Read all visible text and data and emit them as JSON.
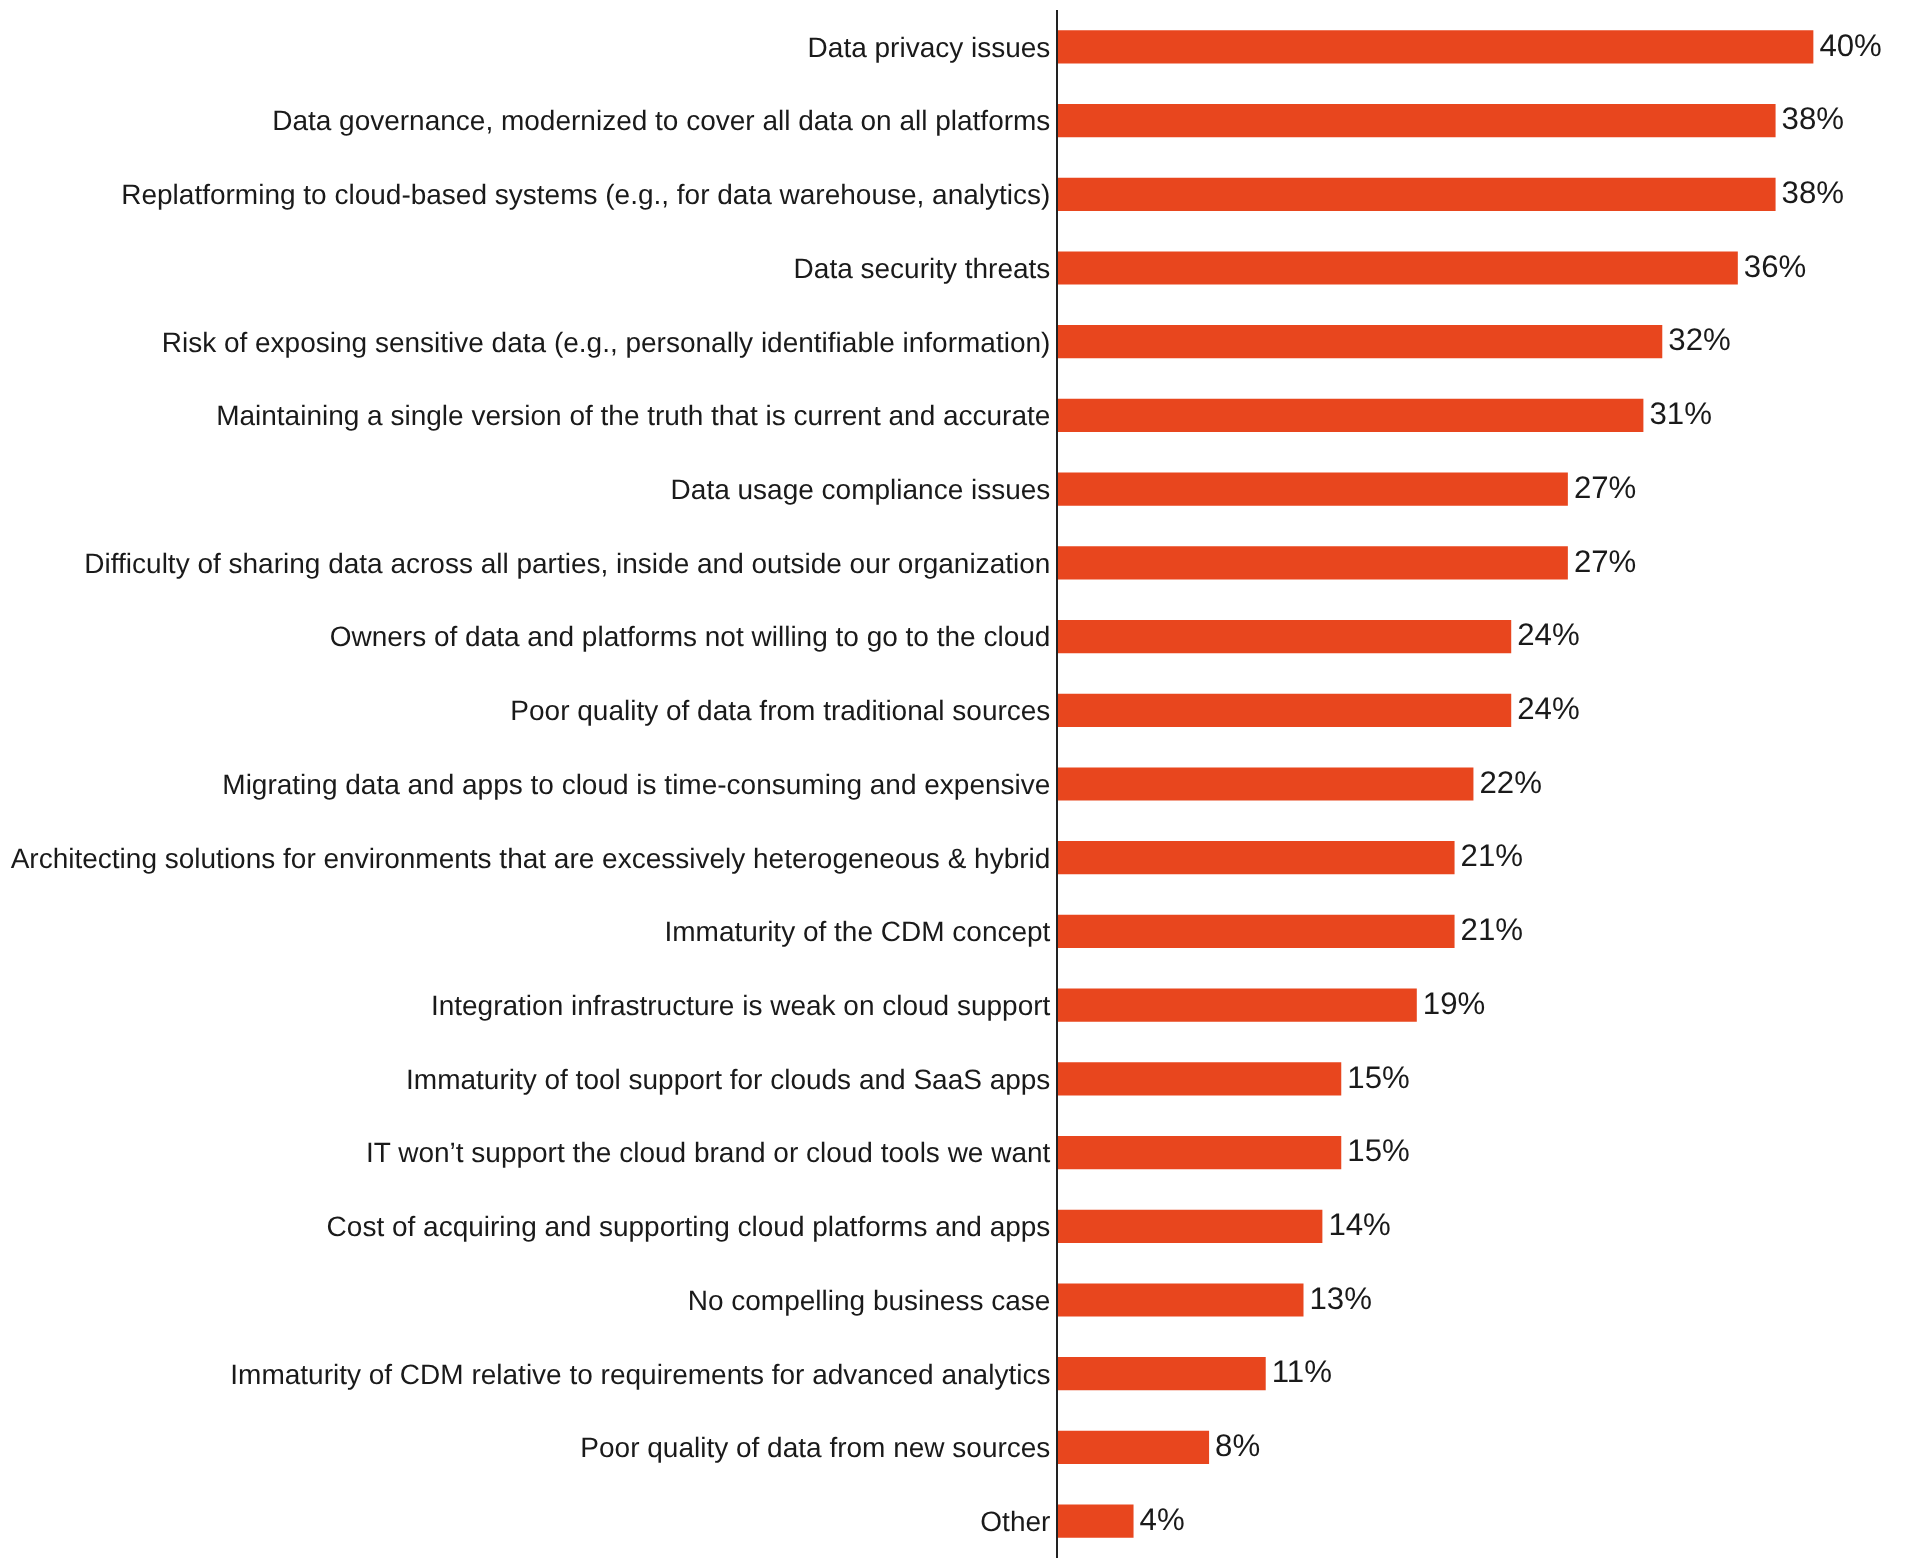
{
  "chart_data": {
    "type": "bar",
    "orientation": "horizontal",
    "tick_labels": "y",
    "categories": [
      "Data privacy issues",
      "Data governance, modernized to cover all data on all platforms",
      "Replatforming to cloud-based systems (e.g., for data warehouse, analytics)",
      "Data security threats",
      "Risk of exposing sensitive data (e.g., personally identifiable information)",
      "Maintaining a single version of the truth that is current and accurate",
      "Data usage compliance issues",
      "Difficulty of sharing data across all parties, inside and outside our organization",
      "Owners of data and platforms not willing to go to the cloud",
      "Poor quality of data from traditional sources",
      "Migrating data and apps to cloud is time-consuming and expensive",
      "Architecting solutions for environments that are excessively heterogeneous & hybrid",
      "Immaturity of the CDM concept",
      "Integration infrastructure is weak on cloud support",
      "Immaturity of tool support for clouds and SaaS apps",
      "IT won’t support the cloud brand or cloud tools we want",
      "Cost of acquiring and supporting cloud platforms and apps",
      "No compelling business case",
      "Immaturity of CDM relative to requirements for advanced analytics",
      "Poor quality of data from new sources",
      "Other"
    ],
    "values": [
      40,
      38,
      38,
      36,
      32,
      31,
      27,
      27,
      24,
      24,
      22,
      21,
      21,
      19,
      15,
      15,
      14,
      13,
      11,
      8,
      4
    ],
    "value_labels": [
      "40%",
      "38%",
      "38%",
      "36%",
      "32%",
      "31%",
      "27%",
      "27%",
      "24%",
      "24%",
      "22%",
      "21%",
      "21%",
      "19%",
      "15%",
      "15%",
      "14%",
      "13%",
      "11%",
      "8%",
      "4%"
    ],
    "color": "#e8461e"
  }
}
